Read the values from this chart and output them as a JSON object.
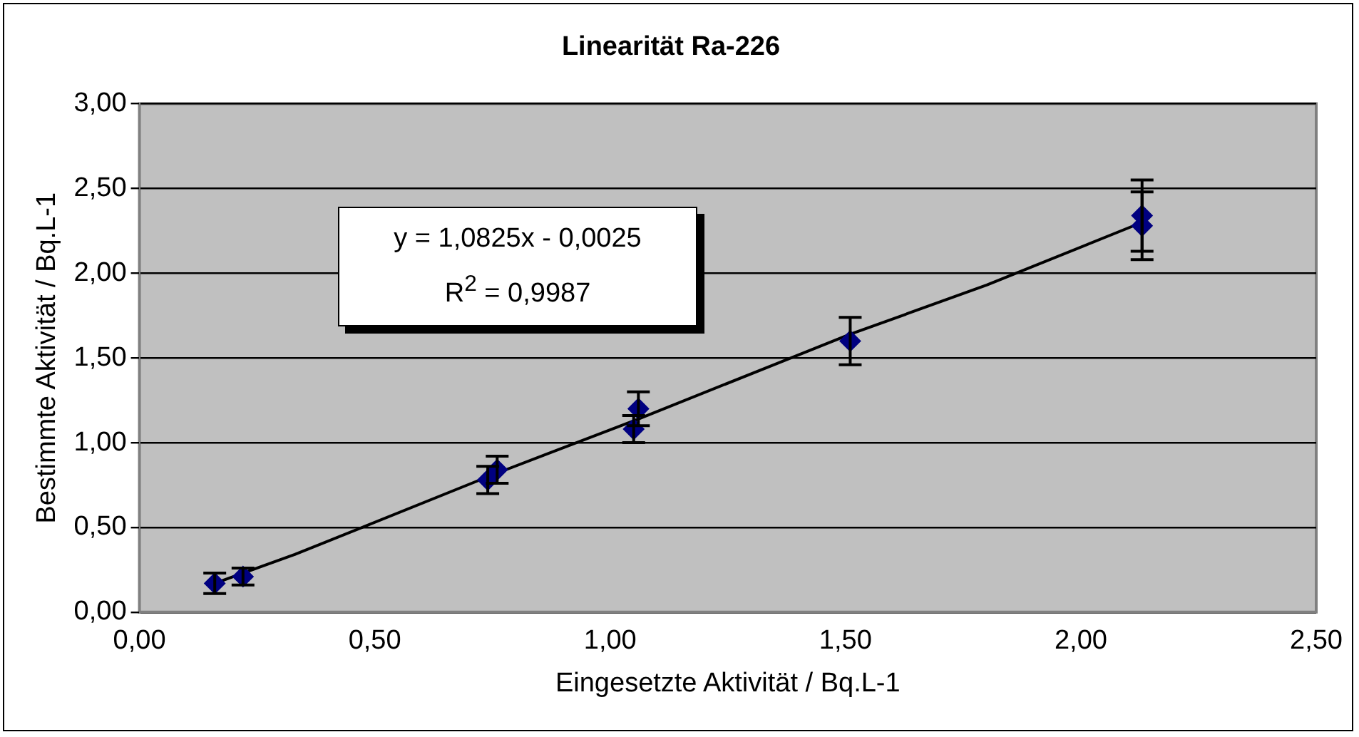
{
  "chart_data": {
    "type": "scatter",
    "title": "Linearität Ra-226",
    "xlabel": "Eingesetzte Aktivität / Bq.L-1",
    "ylabel": "Bestimmte Aktivität / Bq.L-1",
    "annotations": [
      "y = 1,0825x - 0,0025",
      "R$^{2}$ = 0,9987"
    ],
    "series": [
      {
        "type": "scatter",
        "color": "#000080",
        "marker": "diamond",
        "x": [
          0.16,
          0.22,
          0.74,
          0.76,
          1.05,
          1.06,
          1.51,
          2.13,
          2.13
        ],
        "values": [
          0.17,
          0.21,
          0.78,
          0.84,
          1.08,
          1.2,
          1.6,
          2.28,
          2.34
        ],
        "errors": [
          0.06,
          0.05,
          0.08,
          0.08,
          0.08,
          0.1,
          0.14,
          0.2,
          0.21
        ]
      },
      {
        "type": "line",
        "color": "#000000",
        "marker": "none",
        "x": [
          0.16,
          0.33,
          0.75,
          1.06,
          1.51,
          1.8,
          2.13
        ],
        "values": [
          0.17,
          0.34,
          0.81,
          1.14,
          1.64,
          1.93,
          2.3
        ]
      }
    ],
    "xlim": [
      0,
      2.5
    ],
    "xticks": [
      {
        "value": 0,
        "label": "0,00"
      },
      {
        "value": 0.5,
        "label": "0,50"
      },
      {
        "value": 1,
        "label": "1,00"
      },
      {
        "value": 1.5,
        "label": "1,50"
      },
      {
        "value": 2,
        "label": "2,00"
      },
      {
        "value": 2.5,
        "label": "2,50"
      }
    ],
    "ylim": [
      0,
      3
    ],
    "yticks": [
      {
        "value": 0,
        "label": "0,00"
      },
      {
        "value": 0.5,
        "label": "0,50"
      },
      {
        "value": 1,
        "label": "1,00"
      },
      {
        "value": 1.5,
        "label": "1,50"
      },
      {
        "value": 2,
        "label": "2,00"
      },
      {
        "value": 2.5,
        "label": "2,50"
      },
      {
        "value": 3,
        "label": "3,00"
      }
    ],
    "grid": "y",
    "legend": false
  }
}
